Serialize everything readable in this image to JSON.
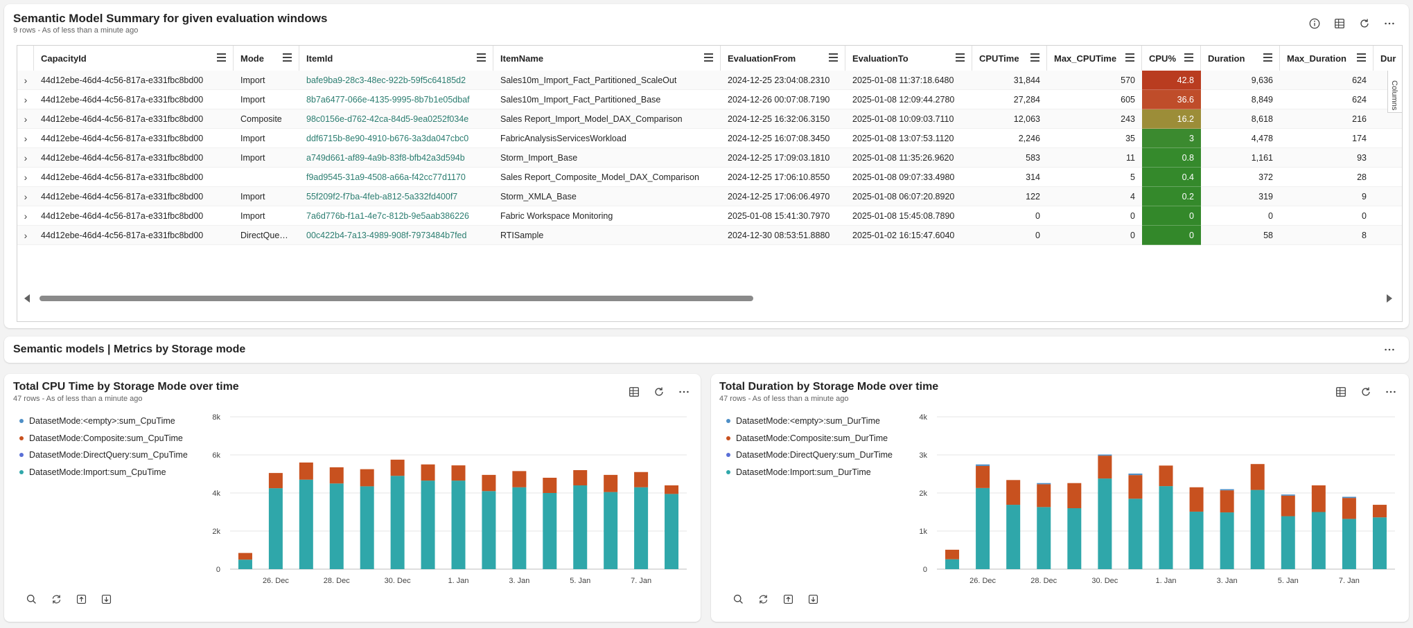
{
  "table_card": {
    "title": "Semantic Model Summary for given evaluation windows",
    "subtitle": "9 rows - As of less than a minute ago",
    "columns_tab": "Columns",
    "headers": [
      "CapacityId",
      "Mode",
      "ItemId",
      "ItemName",
      "EvaluationFrom",
      "EvaluationTo",
      "CPUTime",
      "Max_CPUTime",
      "CPU%",
      "Duration",
      "Max_Duration",
      "Dur"
    ],
    "rows": [
      {
        "capacity": "44d12ebe-46d4-4c56-817a-e331fbc8bd00",
        "mode": "Import",
        "itemid": "bafe9ba9-28c3-48ec-922b-59f5c64185d2",
        "itemname": "Sales10m_Import_Fact_Partitioned_ScaleOut",
        "from": "2024-12-25 23:04:08.2310",
        "to": "2025-01-08 11:37:18.6480",
        "cpu": "31,844",
        "maxcpu": "570",
        "cpupct": "42.8",
        "cpucolor": "#b93c20",
        "duration": "9,636",
        "maxdur": "624"
      },
      {
        "capacity": "44d12ebe-46d4-4c56-817a-e331fbc8bd00",
        "mode": "Import",
        "itemid": "8b7a6477-066e-4135-9995-8b7b1e05dbaf",
        "itemname": "Sales10m_Import_Fact_Partitioned_Base",
        "from": "2024-12-26 00:07:08.7190",
        "to": "2025-01-08 12:09:44.2780",
        "cpu": "27,284",
        "maxcpu": "605",
        "cpupct": "36.6",
        "cpucolor": "#bf4d2a",
        "duration": "8,849",
        "maxdur": "624"
      },
      {
        "capacity": "44d12ebe-46d4-4c56-817a-e331fbc8bd00",
        "mode": "Composite",
        "itemid": "98c0156e-d762-42ca-84d5-9ea0252f034e",
        "itemname": "Sales Report_Import_Model_DAX_Comparison",
        "from": "2024-12-25 16:32:06.3150",
        "to": "2025-01-08 10:09:03.7110",
        "cpu": "12,063",
        "maxcpu": "243",
        "cpupct": "16.2",
        "cpucolor": "#9c8d38",
        "duration": "8,618",
        "maxdur": "216"
      },
      {
        "capacity": "44d12ebe-46d4-4c56-817a-e331fbc8bd00",
        "mode": "Import",
        "itemid": "ddf6715b-8e90-4910-b676-3a3da047cbc0",
        "itemname": "FabricAnalysisServicesWorkload",
        "from": "2024-12-25 16:07:08.3450",
        "to": "2025-01-08 13:07:53.1120",
        "cpu": "2,246",
        "maxcpu": "35",
        "cpupct": "3",
        "cpucolor": "#3b8a2f",
        "duration": "4,478",
        "maxdur": "174"
      },
      {
        "capacity": "44d12ebe-46d4-4c56-817a-e331fbc8bd00",
        "mode": "Import",
        "itemid": "a749d661-af89-4a9b-83f8-bfb42a3d594b",
        "itemname": "Storm_Import_Base",
        "from": "2024-12-25 17:09:03.1810",
        "to": "2025-01-08 11:35:26.9620",
        "cpu": "583",
        "maxcpu": "11",
        "cpupct": "0.8",
        "cpucolor": "#358a2c",
        "duration": "1,161",
        "maxdur": "93"
      },
      {
        "capacity": "44d12ebe-46d4-4c56-817a-e331fbc8bd00",
        "mode": "",
        "itemid": "f9ad9545-31a9-4508-a66a-f42cc77d1170",
        "itemname": "Sales Report_Composite_Model_DAX_Comparison",
        "from": "2024-12-25 17:06:10.8550",
        "to": "2025-01-08 09:07:33.4980",
        "cpu": "314",
        "maxcpu": "5",
        "cpupct": "0.4",
        "cpucolor": "#34892b",
        "duration": "372",
        "maxdur": "28"
      },
      {
        "capacity": "44d12ebe-46d4-4c56-817a-e331fbc8bd00",
        "mode": "Import",
        "itemid": "55f209f2-f7ba-4feb-a812-5a332fd400f7",
        "itemname": "Storm_XMLA_Base",
        "from": "2024-12-25 17:06:06.4970",
        "to": "2025-01-08 06:07:20.8920",
        "cpu": "122",
        "maxcpu": "4",
        "cpupct": "0.2",
        "cpucolor": "#34892b",
        "duration": "319",
        "maxdur": "9"
      },
      {
        "capacity": "44d12ebe-46d4-4c56-817a-e331fbc8bd00",
        "mode": "Import",
        "itemid": "7a6d776b-f1a1-4e7c-812b-9e5aab386226",
        "itemname": "Fabric Workspace Monitoring",
        "from": "2025-01-08 15:41:30.7970",
        "to": "2025-01-08 15:45:08.7890",
        "cpu": "0",
        "maxcpu": "0",
        "cpupct": "0",
        "cpucolor": "#33882a",
        "duration": "0",
        "maxdur": "0"
      },
      {
        "capacity": "44d12ebe-46d4-4c56-817a-e331fbc8bd00",
        "mode": "DirectQue…",
        "itemid": "00c422b4-7a13-4989-908f-7973484b7fed",
        "itemname": "RTISample",
        "from": "2024-12-30 08:53:51.8880",
        "to": "2025-01-02 16:15:47.6040",
        "cpu": "0",
        "maxcpu": "0",
        "cpupct": "0",
        "cpucolor": "#33882a",
        "duration": "58",
        "maxdur": "8"
      }
    ]
  },
  "section_header": {
    "title": "Semantic models | Metrics by Storage mode"
  },
  "colors": {
    "empty": "#4e8fc6",
    "composite": "#c8511f",
    "directquery": "#5a6fd6",
    "import": "#2fa7aa",
    "link": "#2b7d70"
  },
  "icons": [
    "info-icon",
    "table-view-icon",
    "refresh-icon",
    "more-icon",
    "search-icon",
    "sync-icon",
    "upload-icon",
    "download-icon"
  ],
  "chart_data": [
    {
      "type": "bar",
      "stacked": true,
      "title": "Total CPU Time by Storage Mode over time",
      "subtitle": "47 rows - As of less than a minute ago",
      "legend_position": "top-left",
      "categories": [
        "25. Dec",
        "26. Dec",
        "27. Dec",
        "28. Dec",
        "29. Dec",
        "30. Dec",
        "31. Dec",
        "1. Jan",
        "2. Jan",
        "3. Jan",
        "4. Jan",
        "5. Jan",
        "6. Jan",
        "7. Jan",
        "8. Jan"
      ],
      "tick_labels": [
        "26. Dec",
        "28. Dec",
        "30. Dec",
        "1. Jan",
        "3. Jan",
        "5. Jan",
        "7. Jan"
      ],
      "y_ticks": [
        "0",
        "2k",
        "4k",
        "6k",
        "8k"
      ],
      "ylim": [
        0,
        8000
      ],
      "grid": true,
      "series": [
        {
          "name": "DatasetMode:<empty>:sum_CpuTime",
          "color": "#4e8fc6",
          "values": [
            0,
            0,
            0,
            0,
            0,
            0,
            0,
            0,
            0,
            0,
            0,
            0,
            0,
            0,
            0
          ]
        },
        {
          "name": "DatasetMode:Composite:sum_CpuTime",
          "color": "#c8511f",
          "values": [
            350,
            800,
            900,
            850,
            900,
            850,
            850,
            800,
            850,
            850,
            800,
            800,
            900,
            800,
            450
          ]
        },
        {
          "name": "DatasetMode:DirectQuery:sum_CpuTime",
          "color": "#5a6fd6",
          "values": [
            0,
            0,
            0,
            0,
            0,
            0,
            0,
            0,
            0,
            0,
            0,
            0,
            0,
            0,
            0
          ]
        },
        {
          "name": "DatasetMode:Import:sum_CpuTime",
          "color": "#2fa7aa",
          "values": [
            500,
            4250,
            4700,
            4500,
            4350,
            4900,
            4650,
            4650,
            4100,
            4300,
            4000,
            4400,
            4050,
            4300,
            3950
          ]
        }
      ]
    },
    {
      "type": "bar",
      "stacked": true,
      "title": "Total Duration by Storage Mode over time",
      "subtitle": "47 rows - As of less than a minute ago",
      "legend_position": "top-left",
      "categories": [
        "25. Dec",
        "26. Dec",
        "27. Dec",
        "28. Dec",
        "29. Dec",
        "30. Dec",
        "31. Dec",
        "1. Jan",
        "2. Jan",
        "3. Jan",
        "4. Jan",
        "5. Jan",
        "6. Jan",
        "7. Jan",
        "8. Jan"
      ],
      "tick_labels": [
        "26. Dec",
        "28. Dec",
        "30. Dec",
        "1. Jan",
        "3. Jan",
        "5. Jan",
        "7. Jan"
      ],
      "y_ticks": [
        "0",
        "1k",
        "2k",
        "3k",
        "4k"
      ],
      "ylim": [
        0,
        4000
      ],
      "grid": true,
      "series": [
        {
          "name": "DatasetMode:<empty>:sum_DurTime",
          "color": "#4e8fc6",
          "values": [
            0,
            40,
            0,
            30,
            0,
            30,
            40,
            0,
            0,
            30,
            0,
            30,
            0,
            30,
            0
          ]
        },
        {
          "name": "DatasetMode:Composite:sum_DurTime",
          "color": "#c8511f",
          "values": [
            250,
            580,
            650,
            600,
            660,
            600,
            620,
            540,
            640,
            580,
            680,
            540,
            700,
            550,
            330
          ]
        },
        {
          "name": "DatasetMode:DirectQuery:sum_DurTime",
          "color": "#5a6fd6",
          "values": [
            0,
            0,
            0,
            0,
            0,
            0,
            0,
            0,
            0,
            0,
            0,
            0,
            0,
            0,
            0
          ]
        },
        {
          "name": "DatasetMode:Import:sum_DurTime",
          "color": "#2fa7aa",
          "values": [
            260,
            2130,
            1690,
            1630,
            1600,
            2380,
            1850,
            2180,
            1510,
            1490,
            2080,
            1390,
            1500,
            1320,
            1360
          ]
        }
      ]
    }
  ]
}
